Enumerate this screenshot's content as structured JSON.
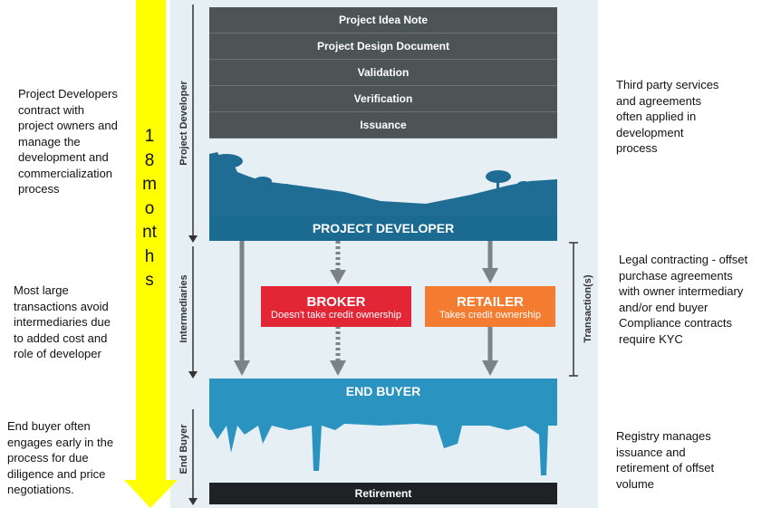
{
  "left_notes": [
    [
      "Project Developers",
      "contract with",
      "project owners and",
      "manage the",
      "development and",
      "commercialization",
      "process"
    ],
    [
      "Most large",
      "transactions avoid",
      "intermediaries due",
      "to added cost and",
      "role of developer"
    ],
    [
      "End buyer often",
      "engages early in the",
      "process for due",
      "diligence and price",
      "negotiations."
    ]
  ],
  "timeline": {
    "label": "18 months"
  },
  "steps": [
    "Project Idea Note",
    "Project Design Document",
    "Validation",
    "Verification",
    "Issuance"
  ],
  "phases": [
    "Project Developer",
    "Intermediaries",
    "End Buyer"
  ],
  "transaction_label": "Transaction(s)",
  "project_developer": "PROJECT DEVELOPER",
  "broker": {
    "title": "BROKER",
    "subtitle": "Doesn't take credit ownership"
  },
  "retailer": {
    "title": "RETAILER",
    "subtitle": "Takes credit ownership"
  },
  "end_buyer": "END BUYER",
  "retirement": "Retirement",
  "right_notes": [
    [
      "Third party services",
      "and agreements",
      "often applied in",
      "development",
      "process"
    ],
    [
      "Legal contracting - offset",
      "purchase agreements",
      "with owner intermediary",
      "and/or end buyer",
      "Compliance contracts",
      "require KYC"
    ],
    [
      "Registry manages",
      "issuance and",
      "retirement of offset",
      "volume"
    ]
  ]
}
